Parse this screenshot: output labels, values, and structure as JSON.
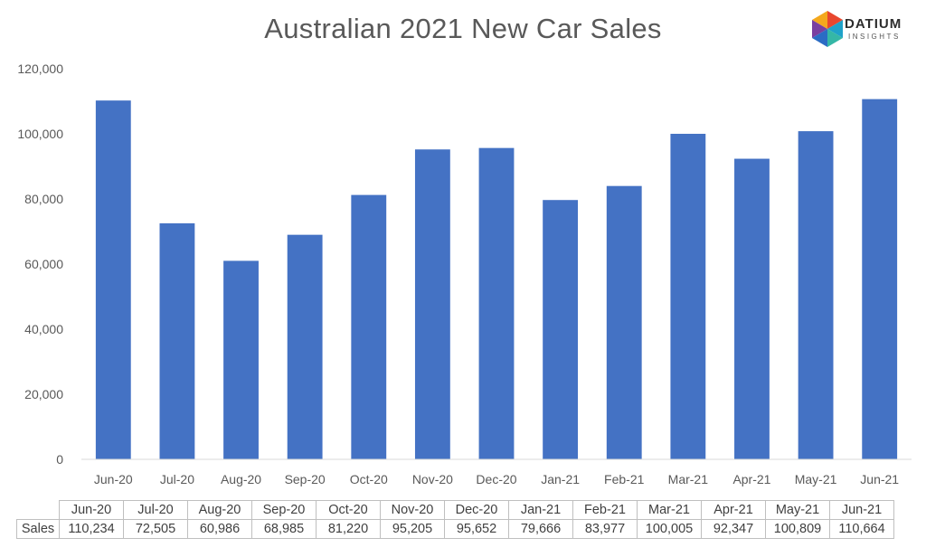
{
  "chart_data": {
    "type": "bar",
    "title": "Australian 2021 New Car Sales",
    "categories": [
      "Jun-20",
      "Jul-20",
      "Aug-20",
      "Sep-20",
      "Oct-20",
      "Nov-20",
      "Dec-20",
      "Jan-21",
      "Feb-21",
      "Mar-21",
      "Apr-21",
      "May-21",
      "Jun-21"
    ],
    "series": [
      {
        "name": "Sales",
        "values": [
          110234,
          72505,
          60986,
          68985,
          81220,
          95205,
          95652,
          79666,
          83977,
          100005,
          92347,
          100809,
          110664
        ]
      }
    ],
    "ylim": [
      0,
      120000
    ],
    "yticks": [
      "0",
      "20,000",
      "40,000",
      "60,000",
      "80,000",
      "100,000",
      "120,000"
    ],
    "bar_color": "#4472C4",
    "grid": false,
    "legend": "none"
  },
  "data_table": {
    "row_header": "Sales",
    "values_formatted": [
      "110,234",
      "72,505",
      "60,986",
      "68,985",
      "81,220",
      "95,205",
      "95,652",
      "79,666",
      "83,977",
      "100,005",
      "92,347",
      "100,809",
      "110,664"
    ]
  },
  "logo": {
    "word": "DATIUM",
    "sub": "INSIGHTS"
  }
}
